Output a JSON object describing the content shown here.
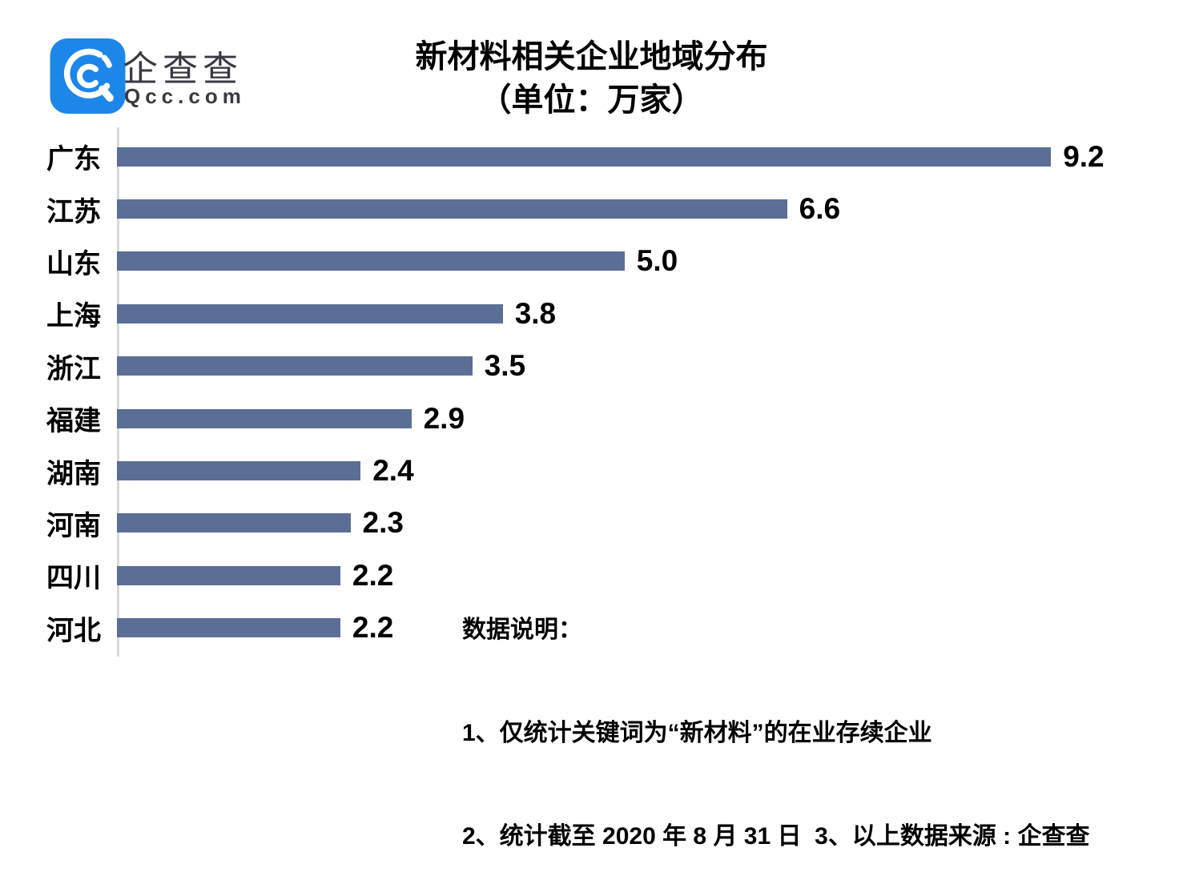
{
  "logo": {
    "brand_cn": "企查查",
    "brand_en": "Qcc.com",
    "icon_color": "#1d87e9"
  },
  "title": {
    "line1": "新材料相关企业地域分布",
    "line2": "（单位：万家）"
  },
  "chart_data": {
    "type": "bar",
    "orientation": "horizontal",
    "title": "新材料相关企业地域分布（单位：万家）",
    "unit": "万家",
    "categories": [
      "广东",
      "江苏",
      "山东",
      "上海",
      "浙江",
      "福建",
      "湖南",
      "河南",
      "四川",
      "河北"
    ],
    "values": [
      9.2,
      6.6,
      5.0,
      3.8,
      3.5,
      2.9,
      2.4,
      2.3,
      2.2,
      2.2
    ],
    "xlim": [
      0,
      10.5
    ],
    "grid": false,
    "value_labels": true,
    "bar_color": "#5b6e96",
    "axis_color": "#d8d8d8",
    "label_color": "#000000"
  },
  "notes": {
    "heading": "数据说明：",
    "line1": "1、仅统计关键词为“新材料”的在业存续企业",
    "line2": "2、统计截至 2020 年 8 月 31 日  3、以上数据来源 : 企查查"
  }
}
